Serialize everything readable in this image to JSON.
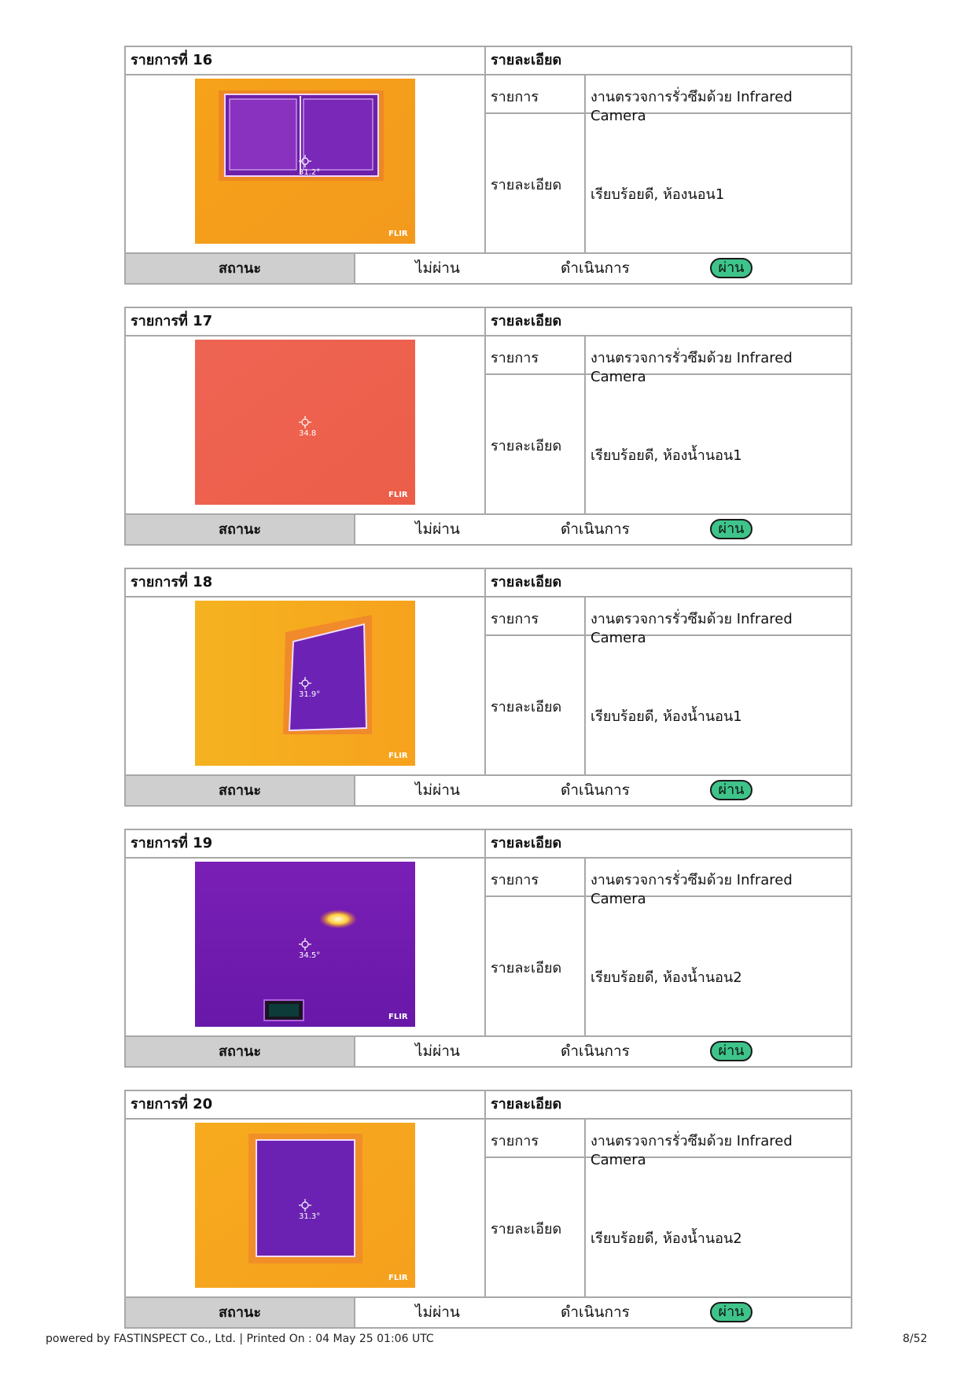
{
  "items": [
    {
      "header": "รายการที่ 16",
      "details_header": "รายละเอียด",
      "item_label": "รายการ",
      "item_value": "งานตรวจการรั่วซึมด้วย Infrared Camera",
      "detail_label": "รายละเอียด",
      "detail_value": "เรียบร้อยดี, ห้องนอน1",
      "status_label": "สถานะ",
      "status_options": [
        "ไม่ผ่าน",
        "ดำเนินการ",
        "ผ่าน"
      ],
      "selected_status": "ผ่าน",
      "photo": {
        "temperature": "31.2°",
        "brand": "FLIR"
      }
    },
    {
      "header": "รายการที่ 17",
      "details_header": "รายละเอียด",
      "item_label": "รายการ",
      "item_value": "งานตรวจการรั่วซึมด้วย Infrared Camera",
      "detail_label": "รายละเอียด",
      "detail_value": "เรียบร้อยดี, ห้องน้ำนอน1",
      "status_label": "สถานะ",
      "status_options": [
        "ไม่ผ่าน",
        "ดำเนินการ",
        "ผ่าน"
      ],
      "selected_status": "ผ่าน",
      "photo": {
        "temperature": "34.8",
        "brand": "FLIR"
      }
    },
    {
      "header": "รายการที่ 18",
      "details_header": "รายละเอียด",
      "item_label": "รายการ",
      "item_value": "งานตรวจการรั่วซึมด้วย Infrared Camera",
      "detail_label": "รายละเอียด",
      "detail_value": "เรียบร้อยดี, ห้องน้ำนอน1",
      "status_label": "สถานะ",
      "status_options": [
        "ไม่ผ่าน",
        "ดำเนินการ",
        "ผ่าน"
      ],
      "selected_status": "ผ่าน",
      "photo": {
        "temperature": "31.9°",
        "brand": "FLIR"
      }
    },
    {
      "header": "รายการที่ 19",
      "details_header": "รายละเอียด",
      "item_label": "รายการ",
      "item_value": "งานตรวจการรั่วซึมด้วย Infrared Camera",
      "detail_label": "รายละเอียด",
      "detail_value": "เรียบร้อยดี, ห้องน้ำนอน2",
      "status_label": "สถานะ",
      "status_options": [
        "ไม่ผ่าน",
        "ดำเนินการ",
        "ผ่าน"
      ],
      "selected_status": "ผ่าน",
      "photo": {
        "temperature": "34.5°",
        "brand": "FLIR"
      }
    },
    {
      "header": "รายการที่ 20",
      "details_header": "รายละเอียด",
      "item_label": "รายการ",
      "item_value": "งานตรวจการรั่วซึมด้วย Infrared Camera",
      "detail_label": "รายละเอียด",
      "detail_value": "เรียบร้อยดี, ห้องน้ำนอน2",
      "status_label": "สถานะ",
      "status_options": [
        "ไม่ผ่าน",
        "ดำเนินการ",
        "ผ่าน"
      ],
      "selected_status": "ผ่าน",
      "photo": {
        "temperature": "31.3°",
        "brand": "FLIR"
      }
    }
  ],
  "footer": {
    "left": "powered by FASTINSPECT Co., Ltd. | Printed On : 04 May 25 01:06 UTC",
    "page": "8/52"
  },
  "colors": {
    "pass_badge": "#3ec48a",
    "status_bg": "#cfcfcf",
    "border": "#a8a8a8"
  }
}
